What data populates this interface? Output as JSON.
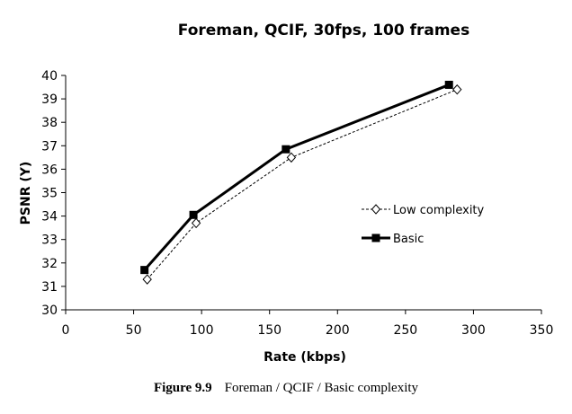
{
  "chart_data": {
    "type": "line",
    "title": "Foreman, QCIF, 30fps, 100 frames",
    "xlabel": "Rate (kbps)",
    "ylabel": "PSNR (Y)",
    "xlim": [
      0,
      350
    ],
    "ylim": [
      30,
      40
    ],
    "xticks": [
      0,
      50,
      100,
      150,
      200,
      250,
      300,
      350
    ],
    "yticks": [
      30,
      31,
      32,
      33,
      34,
      35,
      36,
      37,
      38,
      39,
      40
    ],
    "grid": false,
    "legend_position": "right-center",
    "series": [
      {
        "name": "Low complexity",
        "style": "dashed",
        "marker": "open-diamond",
        "color": "#000000",
        "x": [
          60,
          96,
          166,
          288
        ],
        "y": [
          31.3,
          33.7,
          36.5,
          39.4
        ]
      },
      {
        "name": "Basic",
        "style": "solid",
        "marker": "filled-square",
        "color": "#000000",
        "x": [
          58,
          94,
          162,
          282
        ],
        "y": [
          31.7,
          34.05,
          36.85,
          39.6
        ]
      }
    ]
  },
  "caption": {
    "number": "Figure 9.9",
    "text": "Foreman / QCIF / Basic complexity"
  }
}
